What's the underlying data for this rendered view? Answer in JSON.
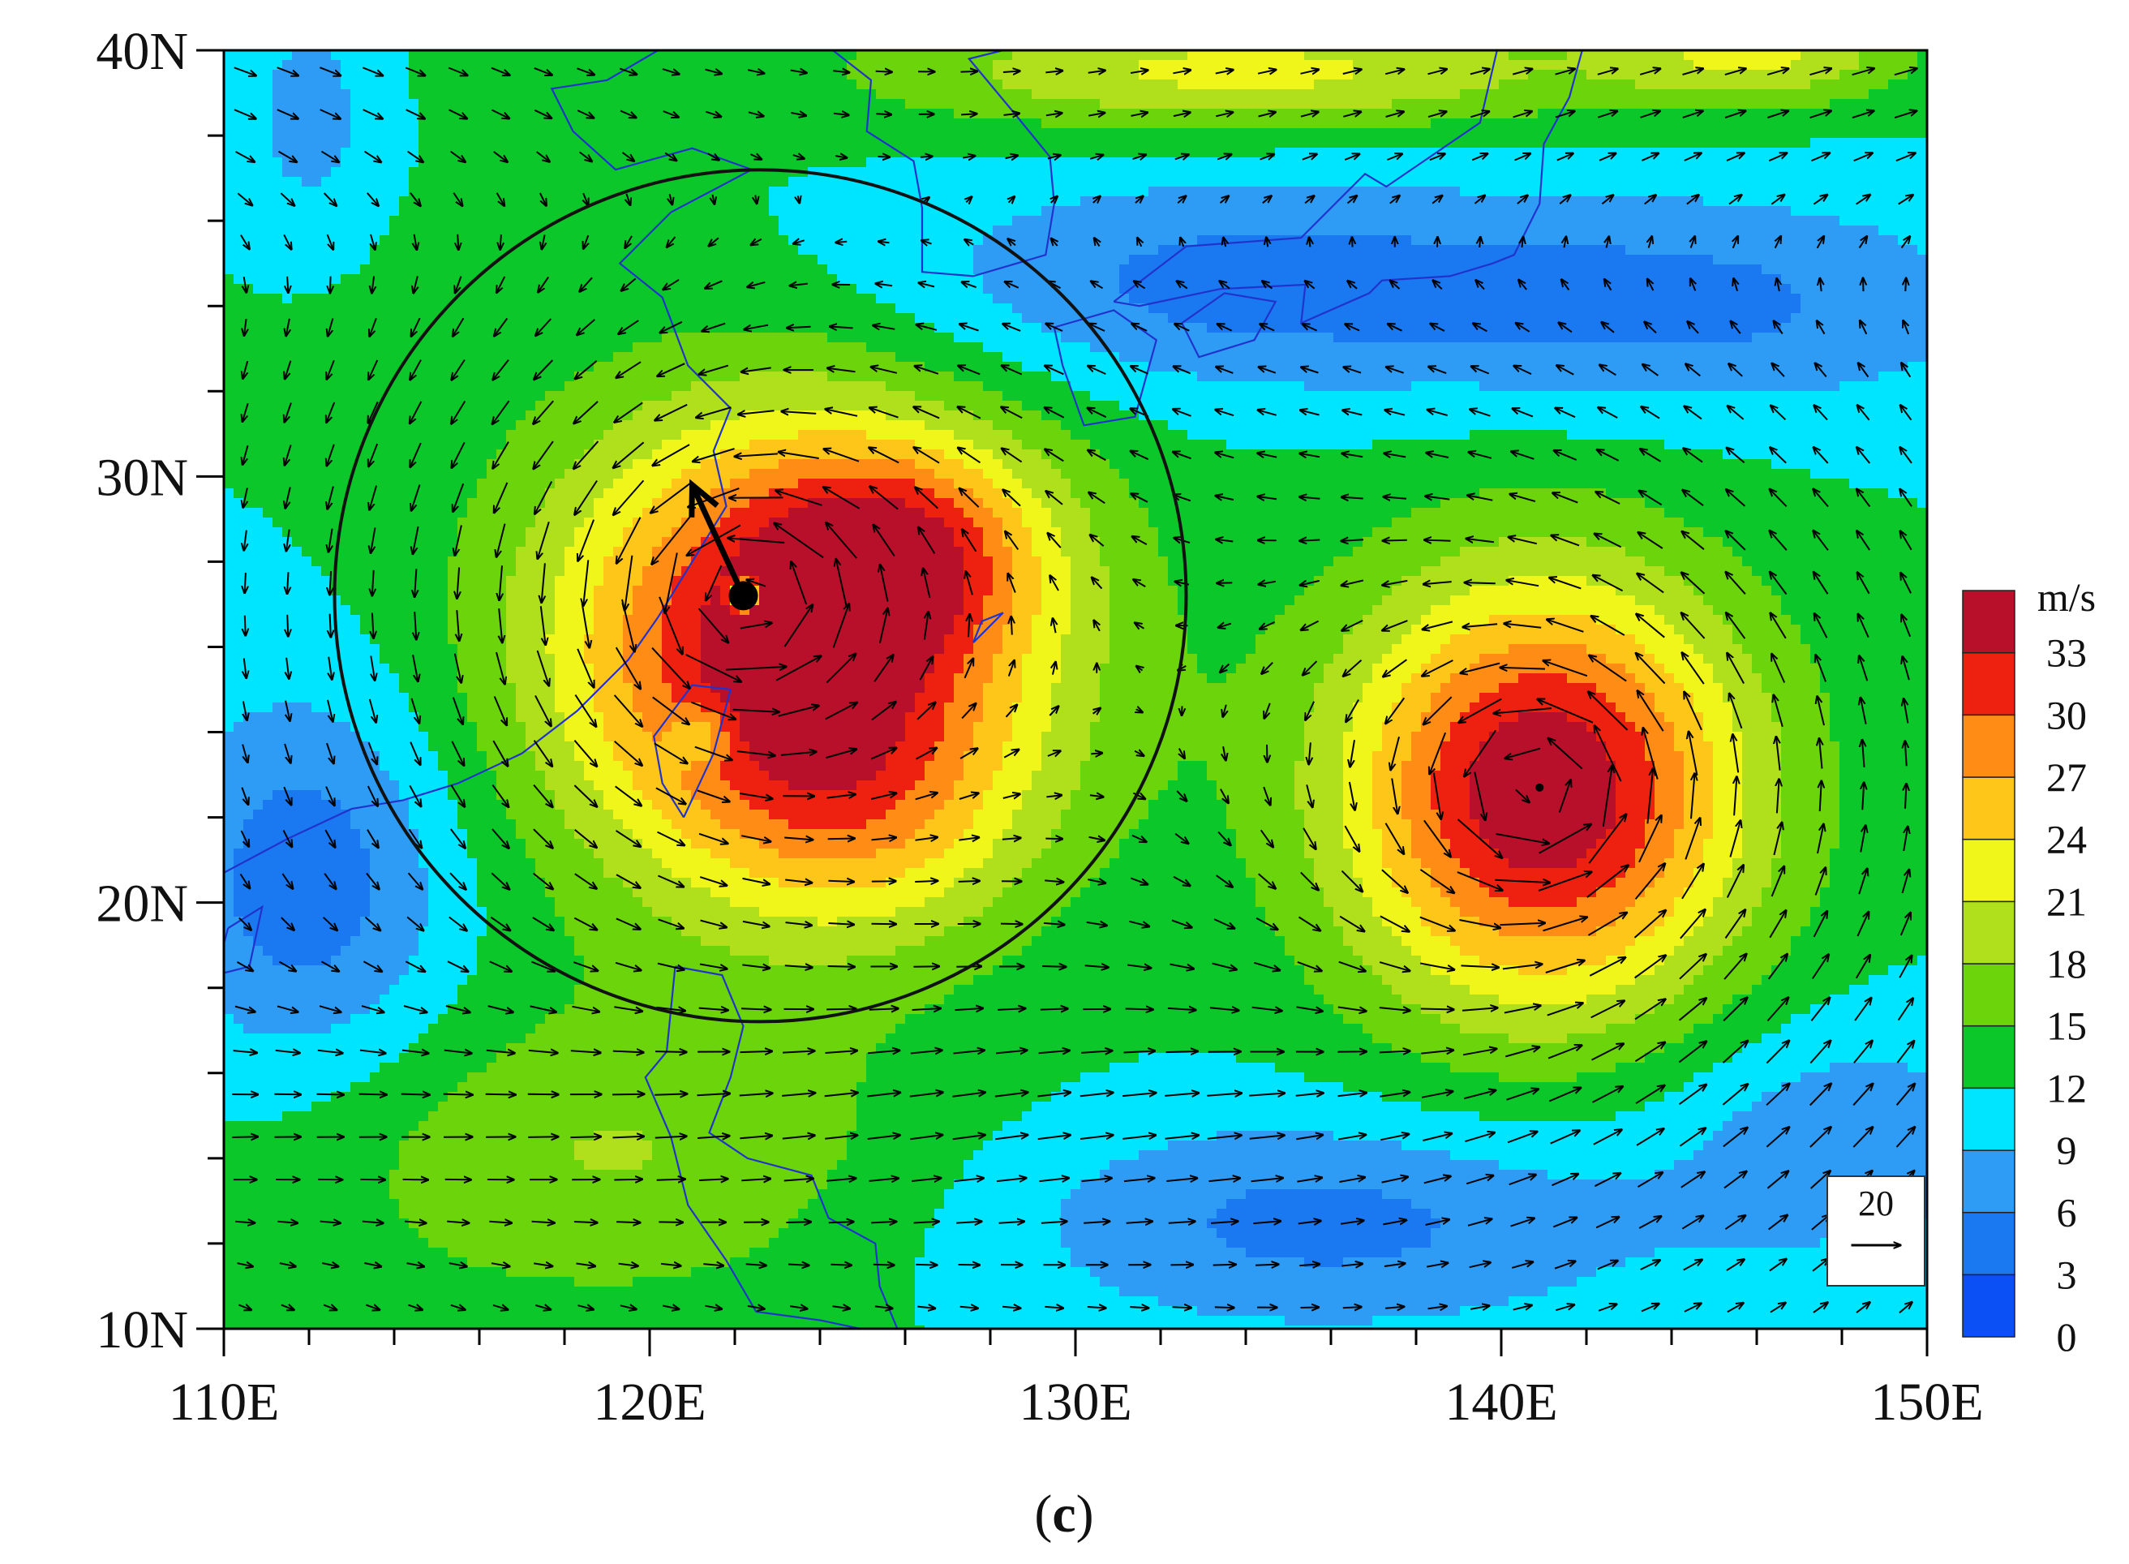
{
  "map": {
    "extent": {
      "lon": [
        110,
        150
      ],
      "lat": [
        10,
        40
      ]
    },
    "lon_ticks": [
      {
        "value": 110,
        "label": "110E"
      },
      {
        "value": 120,
        "label": "120E"
      },
      {
        "value": 130,
        "label": "130E"
      },
      {
        "value": 140,
        "label": "140E"
      },
      {
        "value": 150,
        "label": "150E"
      }
    ],
    "lat_ticks": [
      {
        "value": 10,
        "label": "10N"
      },
      {
        "value": 20,
        "label": "20N"
      },
      {
        "value": 30,
        "label": "30N"
      },
      {
        "value": 40,
        "label": "40N"
      }
    ],
    "panel_label": "(c)",
    "panel_letter": "c",
    "fields": {
      "speed_contours": "filled wind speed",
      "vectors": "wind vectors",
      "coastline_color": "#2233cc"
    },
    "cyclones": [
      {
        "lon": 122.2,
        "lat": 27.2,
        "peak_speed": 34
      },
      {
        "lon": 140.9,
        "lat": 22.7,
        "peak_speed": 34
      }
    ],
    "analysis_circle": {
      "center_lon": 122.6,
      "center_lat": 27.2,
      "radius_deg": 10
    },
    "storm_motion_arrow": {
      "from_lon": 122.2,
      "from_lat": 27.2,
      "to_lon": 121.0,
      "to_lat": 29.8
    },
    "reference_vector": {
      "label": "20",
      "speed": 20
    }
  },
  "colorbar": {
    "unit": "m/s",
    "levels": [
      "0",
      "3",
      "6",
      "9",
      "12",
      "15",
      "18",
      "21",
      "24",
      "27",
      "30",
      "33"
    ],
    "colors": [
      "#0a50f5",
      "#1a78f0",
      "#2e9cf4",
      "#00e5ff",
      "#0cc72a",
      "#6bd40a",
      "#b0e01c",
      "#f0f51a",
      "#ffc61a",
      "#ff8c14",
      "#ee2010",
      "#b8102a"
    ]
  }
}
